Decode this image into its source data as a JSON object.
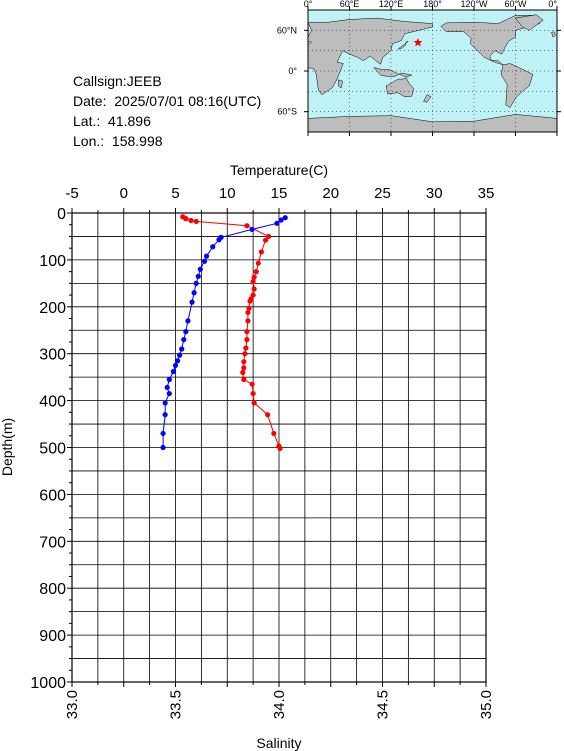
{
  "station": {
    "callsign_line": "Callsign:JEEB",
    "date_label": "Date:",
    "date_value": "2025/07/01 08:16(UTC)",
    "lat_label": "Lat.:",
    "lat_value": "41.896",
    "lon_label": "Lon.:",
    "lon_value": "158.998"
  },
  "map": {
    "lon_tick_labels": [
      "0°",
      "60°E",
      "120°E",
      "180°",
      "120°W",
      "60°W",
      "0°"
    ],
    "lat_tick_labels": [
      "60°N",
      "0°",
      "60°S"
    ],
    "ocean_color": "#bff2f7",
    "land_color": "#bdbdbd",
    "marker_color": "#ff0000",
    "marker": {
      "lon": 159.0,
      "lat": 41.9
    }
  },
  "chart_data": {
    "type": "line",
    "top_axis_label": "Temperature(C)",
    "bottom_axis_label": "Salinity",
    "ylabel": "Depth(m)",
    "temperature_range": [
      -5,
      35
    ],
    "temperature_ticks": [
      "-5",
      "0",
      "5",
      "10",
      "15",
      "20",
      "25",
      "30",
      "35"
    ],
    "salinity_range": [
      33.0,
      35.0
    ],
    "salinity_ticks": [
      "33.0",
      "33.5",
      "34.0",
      "34.5",
      "35.0"
    ],
    "depth_range": [
      0,
      1000
    ],
    "depth_ticks": [
      "0",
      "100",
      "200",
      "300",
      "400",
      "500",
      "600",
      "700",
      "800",
      "900",
      "1000"
    ],
    "grid": true,
    "series": [
      {
        "color": "#ff0000",
        "axis": "temperature",
        "points": [
          [
            5.7,
            8
          ],
          [
            6.0,
            12
          ],
          [
            6.5,
            16
          ],
          [
            7.0,
            18
          ],
          [
            11.9,
            27
          ],
          [
            14.0,
            50
          ],
          [
            13.7,
            58
          ],
          [
            13.3,
            83
          ],
          [
            13.0,
            107
          ],
          [
            12.8,
            125
          ],
          [
            12.6,
            137
          ],
          [
            12.5,
            146
          ],
          [
            12.6,
            162
          ],
          [
            12.5,
            175
          ],
          [
            12.3,
            183
          ],
          [
            12.2,
            188
          ],
          [
            12.1,
            203
          ],
          [
            12.0,
            212
          ],
          [
            12.0,
            230
          ],
          [
            11.9,
            253
          ],
          [
            11.9,
            270
          ],
          [
            11.8,
            288
          ],
          [
            11.7,
            300
          ],
          [
            11.6,
            317
          ],
          [
            11.6,
            330
          ],
          [
            11.5,
            340
          ],
          [
            11.6,
            355
          ],
          [
            12.4,
            365
          ],
          [
            12.5,
            385
          ],
          [
            12.6,
            405
          ],
          [
            13.9,
            430
          ],
          [
            14.5,
            470
          ],
          [
            15.0,
            497
          ],
          [
            15.1,
            502
          ]
        ]
      },
      {
        "color": "#0000ff",
        "axis": "salinity",
        "points": [
          [
            34.03,
            10
          ],
          [
            34.01,
            15
          ],
          [
            33.99,
            22
          ],
          [
            33.87,
            35
          ],
          [
            33.72,
            52
          ],
          [
            33.71,
            57
          ],
          [
            33.68,
            72
          ],
          [
            33.65,
            92
          ],
          [
            33.64,
            103
          ],
          [
            33.62,
            120
          ],
          [
            33.61,
            135
          ],
          [
            33.6,
            150
          ],
          [
            33.59,
            170
          ],
          [
            33.58,
            190
          ],
          [
            33.56,
            230
          ],
          [
            33.55,
            253
          ],
          [
            33.54,
            270
          ],
          [
            33.53,
            290
          ],
          [
            33.52,
            303
          ],
          [
            33.51,
            315
          ],
          [
            33.5,
            325
          ],
          [
            33.49,
            338
          ],
          [
            33.47,
            355
          ],
          [
            33.46,
            372
          ],
          [
            33.47,
            385
          ],
          [
            33.45,
            405
          ],
          [
            33.45,
            430
          ],
          [
            33.44,
            470
          ],
          [
            33.44,
            500
          ]
        ]
      }
    ]
  }
}
